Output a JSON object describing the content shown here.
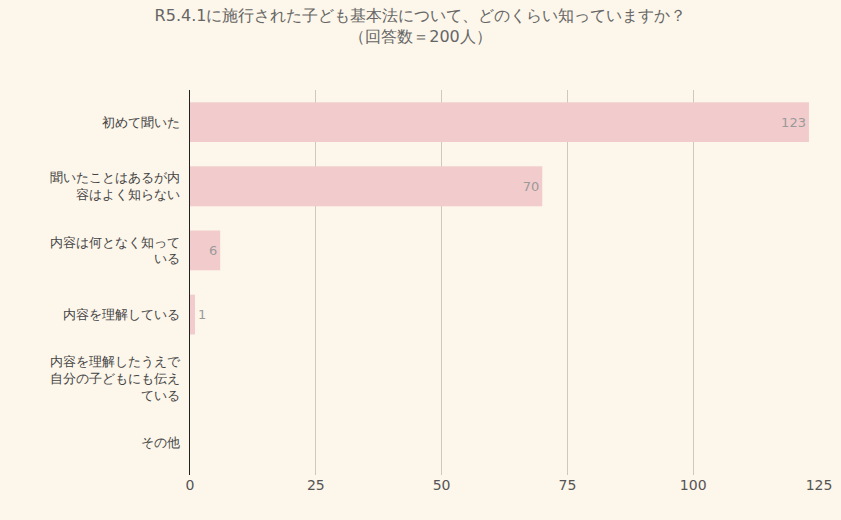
{
  "chart_data": {
    "type": "bar",
    "orientation": "horizontal",
    "title": "R5.4.1に施行された子ども基本法について、どのくらい知っていますか？",
    "subtitle": "（回答数＝200人）",
    "categories": [
      "初めて聞いた",
      "聞いたことはあるが内容はよく知らない",
      "内容は何となく知っている",
      "内容を理解している",
      "内容を理解したうえで自分の子どもにも伝えている",
      "その他"
    ],
    "values": [
      123,
      70,
      6,
      1,
      0,
      0
    ],
    "color": "#f2cccc",
    "xlim": [
      0,
      125
    ],
    "xticks": [
      0,
      25,
      50,
      75,
      100,
      125
    ],
    "grid": true,
    "data_labels": true
  }
}
